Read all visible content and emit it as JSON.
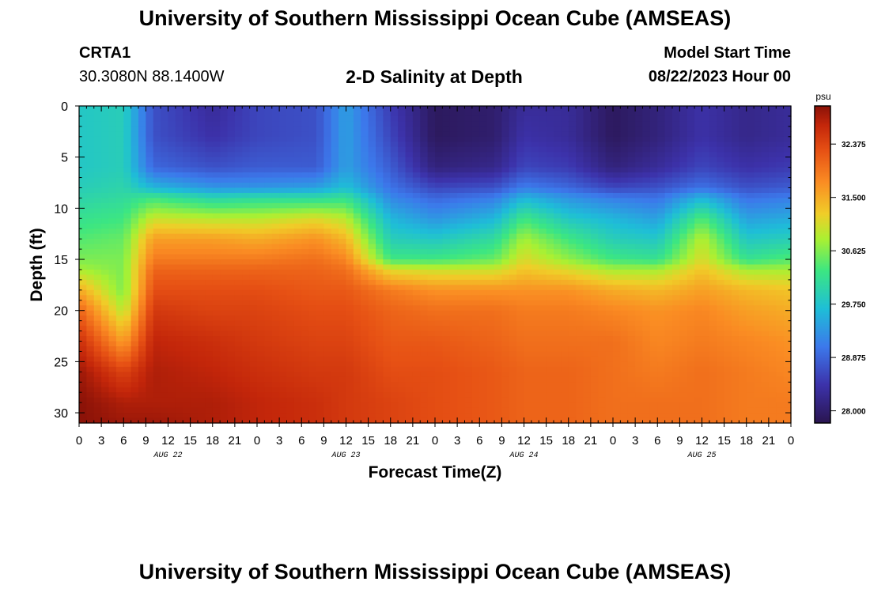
{
  "header": {
    "title": "University of Southern Mississippi Ocean Cube (AMSEAS)",
    "station_name": "CRTA1",
    "station_coords": "30.3080N  88.1400W",
    "model_start_label": "Model Start Time",
    "model_start_value": "08/22/2023 Hour 00"
  },
  "footer": {
    "title": "University of Southern Mississippi Ocean Cube (AMSEAS)"
  },
  "colors": {
    "low": "#2a1550",
    "high": "#8a1208"
  },
  "chart_data": {
    "type": "heatmap",
    "title": "2-D Salinity at Depth",
    "xlabel": "Forecast Time(Z)",
    "ylabel": "Depth (ft)",
    "x_range_hours": [
      0,
      96
    ],
    "y_range_ft": [
      0,
      31
    ],
    "x_tick_labels": [
      "0",
      "3",
      "6",
      "9",
      "12",
      "15",
      "18",
      "21",
      "0",
      "3",
      "6",
      "9",
      "12",
      "15",
      "18",
      "21",
      "0",
      "3",
      "6",
      "9",
      "12",
      "15",
      "18",
      "21",
      "0",
      "3",
      "6",
      "9",
      "12",
      "15",
      "18",
      "21",
      "0"
    ],
    "date_labels": [
      {
        "hour": 12,
        "label": "AUG 22"
      },
      {
        "hour": 36,
        "label": "AUG 23"
      },
      {
        "hour": 60,
        "label": "AUG 24"
      },
      {
        "hour": 84,
        "label": "AUG 25"
      }
    ],
    "y_ticks": [
      0,
      5,
      10,
      15,
      20,
      25,
      30
    ],
    "colorbar": {
      "unit": "psu",
      "ticks": [
        "28.000",
        "28.875",
        "29.750",
        "30.625",
        "31.500",
        "32.375"
      ],
      "min": 27.8,
      "max": 33.0
    },
    "salinity_profiles": {
      "depths_ft": [
        0,
        3,
        6,
        8,
        9,
        11,
        13,
        15,
        16,
        18,
        20,
        23,
        26,
        29,
        31
      ],
      "times_hours": [
        0,
        6,
        10,
        18,
        24,
        32,
        36,
        42,
        48,
        56,
        60,
        66,
        72,
        78,
        84,
        90,
        96
      ],
      "values_psu": [
        [
          29.8,
          29.8,
          29.8,
          29.9,
          30.0,
          30.2,
          30.4,
          30.6,
          30.8,
          31.5,
          32.1,
          32.6,
          32.9,
          33.0,
          33.0
        ],
        [
          29.9,
          29.9,
          29.9,
          30.0,
          30.1,
          30.3,
          30.5,
          30.6,
          30.6,
          30.6,
          30.9,
          31.6,
          32.4,
          32.8,
          32.9
        ],
        [
          28.7,
          28.7,
          28.9,
          29.6,
          30.3,
          31.0,
          31.6,
          31.9,
          32.1,
          32.3,
          32.5,
          32.7,
          32.8,
          32.8,
          32.9
        ],
        [
          28.3,
          28.4,
          28.7,
          29.3,
          30.0,
          30.9,
          31.6,
          31.9,
          32.1,
          32.3,
          32.4,
          32.6,
          32.7,
          32.8,
          32.8
        ],
        [
          28.6,
          28.6,
          28.8,
          29.3,
          30.1,
          30.9,
          31.5,
          31.9,
          32.1,
          32.3,
          32.4,
          32.5,
          32.6,
          32.7,
          32.7
        ],
        [
          28.7,
          28.7,
          28.8,
          29.4,
          30.1,
          31.1,
          31.7,
          32.0,
          32.1,
          32.2,
          32.3,
          32.4,
          32.5,
          32.6,
          32.6
        ],
        [
          29.4,
          29.4,
          29.4,
          29.7,
          30.2,
          30.9,
          31.4,
          31.8,
          32.0,
          32.2,
          32.3,
          32.4,
          32.5,
          32.5,
          32.5
        ],
        [
          28.5,
          28.6,
          28.8,
          29.0,
          29.2,
          29.6,
          29.9,
          30.3,
          31.1,
          31.9,
          32.1,
          32.2,
          32.3,
          32.4,
          32.4
        ],
        [
          27.9,
          27.9,
          28.1,
          28.6,
          28.9,
          29.3,
          29.8,
          30.3,
          31.0,
          31.7,
          32.0,
          32.2,
          32.3,
          32.3,
          32.3
        ],
        [
          28.0,
          28.0,
          28.2,
          28.7,
          29.1,
          29.6,
          30.1,
          30.5,
          31.0,
          31.7,
          32.0,
          32.1,
          32.2,
          32.2,
          32.2
        ],
        [
          28.3,
          28.4,
          28.6,
          29.1,
          29.6,
          30.3,
          30.8,
          31.1,
          31.3,
          31.7,
          31.9,
          32.0,
          32.1,
          32.1,
          32.1
        ],
        [
          28.3,
          28.3,
          28.5,
          28.9,
          29.3,
          29.8,
          30.3,
          30.7,
          31.1,
          31.7,
          31.9,
          32.0,
          32.1,
          32.1,
          32.1
        ],
        [
          27.9,
          27.9,
          28.1,
          28.6,
          29.1,
          29.6,
          29.9,
          30.3,
          30.8,
          31.5,
          31.8,
          32.0,
          32.0,
          32.0,
          32.0
        ],
        [
          28.1,
          28.1,
          28.3,
          28.7,
          29.0,
          29.4,
          29.8,
          30.2,
          30.8,
          31.4,
          31.7,
          31.8,
          31.9,
          32.0,
          32.0
        ],
        [
          28.4,
          28.4,
          28.6,
          29.0,
          29.6,
          30.4,
          30.9,
          31.1,
          31.3,
          31.6,
          31.8,
          31.9,
          32.0,
          32.0,
          32.0
        ],
        [
          28.2,
          28.2,
          28.4,
          28.7,
          29.0,
          29.4,
          29.8,
          30.2,
          30.8,
          31.4,
          31.6,
          31.8,
          31.9,
          31.9,
          31.9
        ],
        [
          28.3,
          28.3,
          28.5,
          28.8,
          29.1,
          29.5,
          29.9,
          30.4,
          30.8,
          31.3,
          31.5,
          31.7,
          31.8,
          31.9,
          31.9
        ]
      ]
    }
  }
}
